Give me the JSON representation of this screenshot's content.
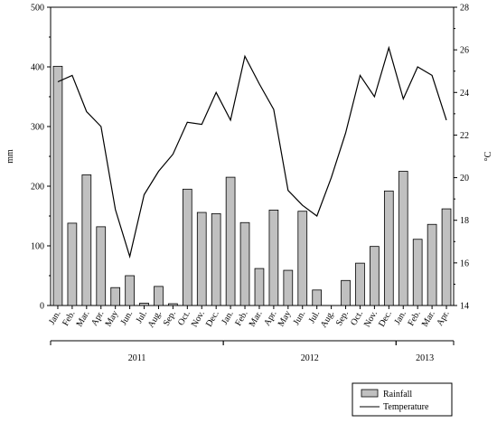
{
  "chart_data": {
    "type": "bar",
    "categories": [
      "Jan.",
      "Feb.",
      "Mar.",
      "Apr.",
      "May",
      "Jun.",
      "Jul.",
      "Aug.",
      "Sep.",
      "Oct.",
      "Nov.",
      "Dec.",
      "Jan.",
      "Feb.",
      "Mar.",
      "Apr.",
      "May",
      "Jun.",
      "Jul.",
      "Aug.",
      "Sep.",
      "Oct.",
      "Nov.",
      "Dec.",
      "Jan.",
      "Feb.",
      "Mar.",
      "Apr."
    ],
    "years": [
      {
        "label": "2011",
        "start": 0,
        "end": 11
      },
      {
        "label": "2012",
        "start": 12,
        "end": 23
      },
      {
        "label": "2013",
        "start": 24,
        "end": 27
      }
    ],
    "series": [
      {
        "name": "Rainfall",
        "type": "bar",
        "axis": "left",
        "color": "#c0c0c0",
        "values": [
          401,
          138,
          219,
          132,
          30,
          50,
          4,
          32,
          3,
          195,
          156,
          154,
          215,
          139,
          62,
          160,
          59,
          158,
          26,
          0,
          42,
          71,
          99,
          192,
          225,
          111,
          136,
          162
        ]
      },
      {
        "name": "Temperature",
        "type": "line",
        "axis": "right",
        "color": "#000000",
        "values": [
          24.5,
          24.8,
          23.1,
          22.4,
          18.5,
          16.3,
          19.2,
          20.3,
          21.1,
          22.6,
          22.5,
          24.0,
          22.7,
          25.7,
          24.4,
          23.2,
          19.4,
          18.7,
          18.2,
          20.0,
          22.1,
          24.8,
          23.8,
          26.1,
          23.7,
          25.2,
          24.8,
          22.7
        ]
      }
    ],
    "ylabel": "mm",
    "y2label": "°C",
    "ylim": [
      0,
      500
    ],
    "y2lim": [
      14,
      28
    ],
    "yticks": [
      "0",
      "100",
      "200",
      "300",
      "400",
      "500"
    ],
    "y2ticks": [
      "14",
      "16",
      "18",
      "20",
      "22",
      "24",
      "26",
      "28"
    ],
    "legend": {
      "placement": "bottom-right",
      "items": [
        {
          "label": "Rainfall",
          "kind": "bar"
        },
        {
          "label": "Temperature",
          "kind": "line"
        }
      ]
    },
    "grid": false
  }
}
